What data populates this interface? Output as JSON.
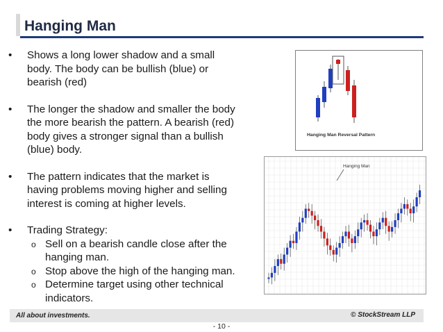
{
  "slide": {
    "title": "Hanging Man",
    "bullets": [
      {
        "marker": "•",
        "lines": [
          "Shows a long lower shadow and a small",
          "body. The body can be bullish (blue) or",
          "bearish (red)"
        ]
      },
      {
        "marker": "•",
        "lines": [
          "The longer the shadow and smaller the body",
          "the more bearish the pattern. A bearish (red)",
          "body gives a stronger signal than a bullish",
          "(blue) body."
        ]
      },
      {
        "marker": "•",
        "lines": [
          "The pattern indicates that the market is",
          "having problems moving higher and selling",
          "interest is coming at higher levels."
        ]
      },
      {
        "marker": "•",
        "lines": [
          "Trading Strategy:"
        ],
        "subitems": [
          {
            "marker": "o",
            "lines": [
              "Sell on a bearish candle close after the",
              "hanging man."
            ]
          },
          {
            "marker": "o",
            "lines": [
              "Stop above the high of the hanging man."
            ]
          },
          {
            "marker": "o",
            "lines": [
              "Determine target using other technical",
              "indicators."
            ]
          }
        ]
      }
    ],
    "figure_reversal": {
      "caption": "Hanging Man Reversal Pattern"
    },
    "figure_chart": {
      "label": "Hanging Man"
    },
    "footer": {
      "left": "All about investments.",
      "right": "© StockStream LLP",
      "page": "- 10 -"
    }
  },
  "colors": {
    "title": "#1f2a44",
    "rule": "#1f3a7a",
    "bull": "#1f3fbf",
    "bear": "#cc2020",
    "footer_bg": "#e6e6e6"
  },
  "icons": [
    "bullet-dot",
    "sub-bullet-circle"
  ]
}
